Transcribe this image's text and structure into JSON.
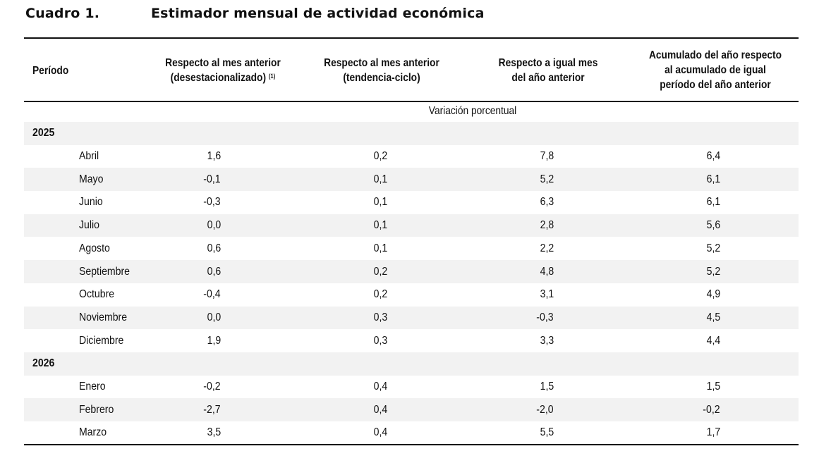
{
  "title": {
    "number": "Cuadro 1.",
    "text": "Estimador mensual de actividad económica"
  },
  "headers": {
    "period": "Período",
    "col1": [
      "Respecto al mes anterior",
      "(desestacionalizado)"
    ],
    "col1_note": "(1)",
    "col2": [
      "Respecto al mes anterior",
      "(tendencia-ciclo)"
    ],
    "col3": [
      "Respecto a igual mes",
      "del año anterior"
    ],
    "col4": [
      "Acumulado del año respecto",
      "al acumulado de igual",
      "período del año anterior"
    ]
  },
  "subcaption": "Variación porcentual",
  "rows": [
    {
      "type": "year",
      "label": "2025",
      "shade": true
    },
    {
      "type": "month",
      "label": "Abril",
      "values": [
        "1,6",
        "0,2",
        "7,8",
        "6,4"
      ],
      "shade": false
    },
    {
      "type": "month",
      "label": "Mayo",
      "values": [
        "-0,1",
        "0,1",
        "5,2",
        "6,1"
      ],
      "shade": true
    },
    {
      "type": "month",
      "label": "Junio",
      "values": [
        "-0,3",
        "0,1",
        "6,3",
        "6,1"
      ],
      "shade": false
    },
    {
      "type": "month",
      "label": "Julio",
      "values": [
        "0,0",
        "0,1",
        "2,8",
        "5,6"
      ],
      "shade": true
    },
    {
      "type": "month",
      "label": "Agosto",
      "values": [
        "0,6",
        "0,1",
        "2,2",
        "5,2"
      ],
      "shade": false
    },
    {
      "type": "month",
      "label": "Septiembre",
      "values": [
        "0,6",
        "0,2",
        "4,8",
        "5,2"
      ],
      "shade": true
    },
    {
      "type": "month",
      "label": "Octubre",
      "values": [
        "-0,4",
        "0,2",
        "3,1",
        "4,9"
      ],
      "shade": false
    },
    {
      "type": "month",
      "label": "Noviembre",
      "values": [
        "0,0",
        "0,3",
        "-0,3",
        "4,5"
      ],
      "shade": true
    },
    {
      "type": "month",
      "label": "Diciembre",
      "values": [
        "1,9",
        "0,3",
        "3,3",
        "4,4"
      ],
      "shade": false
    },
    {
      "type": "year",
      "label": "2026",
      "shade": true
    },
    {
      "type": "month",
      "label": "Enero",
      "values": [
        "-0,2",
        "0,4",
        "1,5",
        "1,5"
      ],
      "shade": false
    },
    {
      "type": "month",
      "label": "Febrero",
      "values": [
        "-2,7",
        "0,4",
        "-2,0",
        "-0,2"
      ],
      "shade": true
    },
    {
      "type": "month",
      "label": "Marzo",
      "values": [
        "3,5",
        "0,4",
        "5,5",
        "1,7"
      ],
      "shade": false
    }
  ]
}
